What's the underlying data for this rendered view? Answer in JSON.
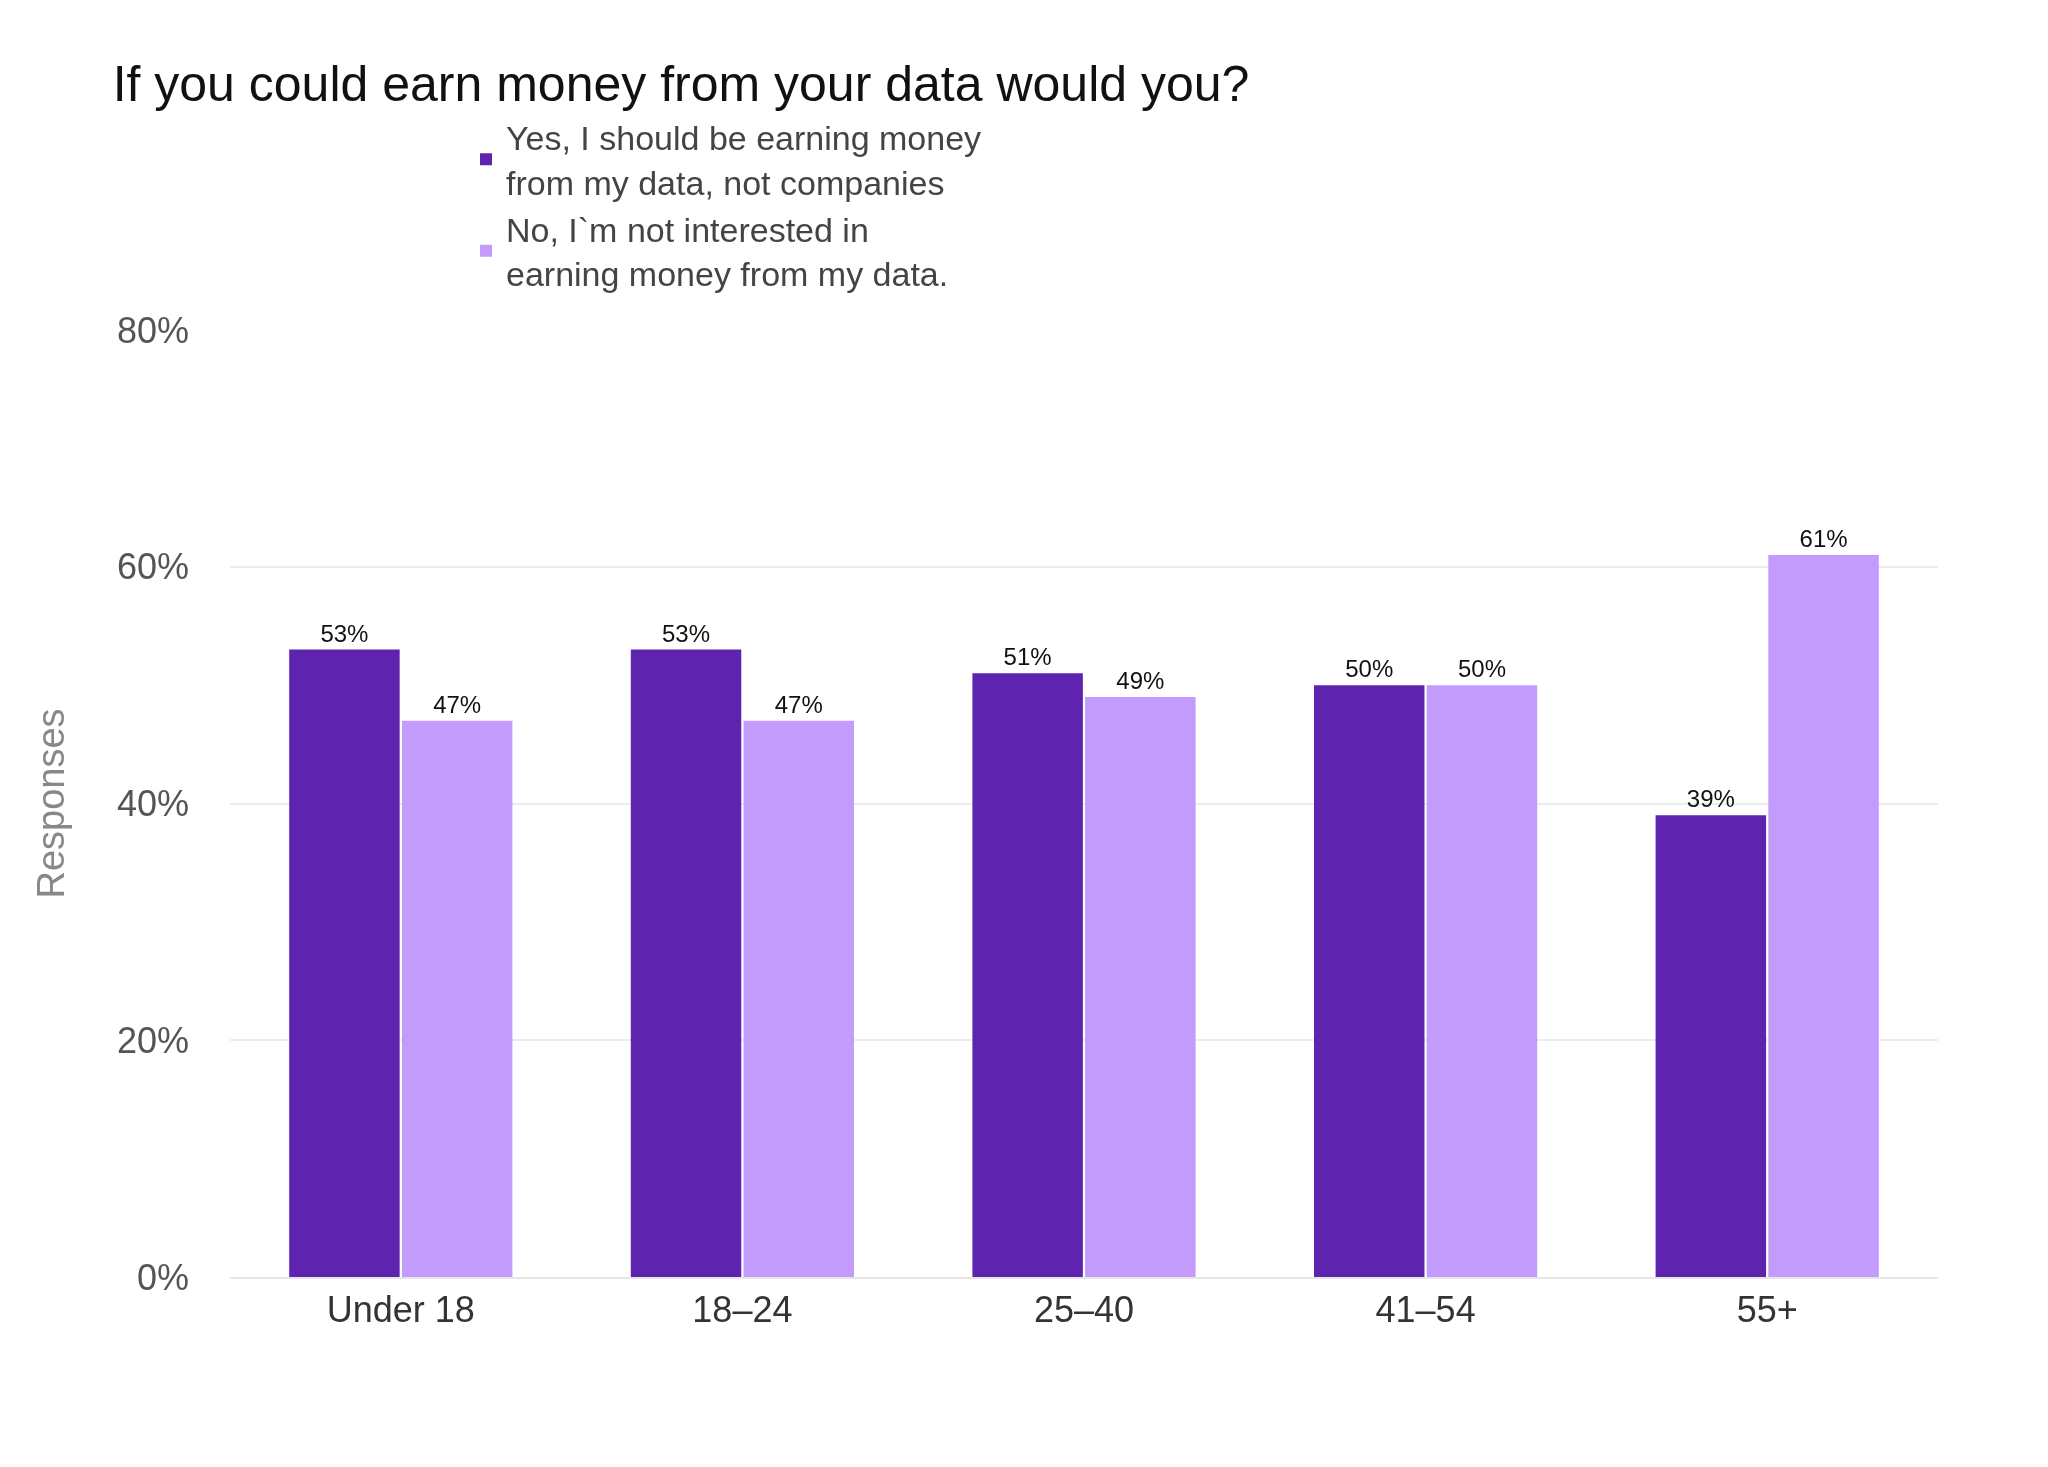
{
  "chart_data": {
    "type": "bar",
    "title": "If you could earn money from your data would you?",
    "ylabel": "Responses",
    "categories": [
      "Under 18",
      "18–24",
      "25–40",
      "41–54",
      "55+"
    ],
    "series": [
      {
        "name": "Yes, I should be earning money\nfrom my data, not companies",
        "color": "#5e24b0",
        "values": [
          53,
          53,
          51,
          50,
          39
        ],
        "value_labels": [
          "53%",
          "53%",
          "51%",
          "50%",
          "39%"
        ]
      },
      {
        "name": "No, I`m not interested in\nearning money from my data.",
        "color": "#c39bfc",
        "values": [
          47,
          47,
          49,
          50,
          61
        ],
        "value_labels": [
          "47%",
          "47%",
          "49%",
          "50%",
          "61%"
        ]
      }
    ],
    "ylim": [
      0,
      80
    ],
    "yticks": [
      {
        "value": 0,
        "label": "0%"
      },
      {
        "value": 20,
        "label": "20%"
      },
      {
        "value": 40,
        "label": "40%"
      },
      {
        "value": 60,
        "label": "60%"
      },
      {
        "value": 80,
        "label": "80%"
      }
    ],
    "grid": "y",
    "legend": "top"
  }
}
